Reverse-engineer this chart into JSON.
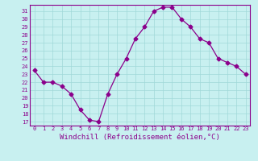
{
  "x": [
    0,
    1,
    2,
    3,
    4,
    5,
    6,
    7,
    8,
    9,
    10,
    11,
    12,
    13,
    14,
    15,
    16,
    17,
    18,
    19,
    20,
    21,
    22,
    23
  ],
  "y": [
    23.5,
    22.0,
    22.0,
    21.5,
    20.5,
    18.5,
    17.2,
    17.0,
    20.5,
    23.0,
    25.0,
    27.5,
    29.0,
    31.0,
    31.5,
    31.5,
    30.0,
    29.0,
    27.5,
    27.0,
    25.0,
    24.5,
    24.0,
    23.0
  ],
  "line_color": "#8b008b",
  "marker": "D",
  "markersize": 2.5,
  "linewidth": 0.9,
  "bg_color": "#c8f0f0",
  "grid_color": "#a0d8d8",
  "xlabel": "Windchill (Refroidissement éolien,°C)",
  "xlabel_fontsize": 6.5,
  "ytick_values": [
    17,
    18,
    19,
    20,
    21,
    22,
    23,
    24,
    25,
    26,
    27,
    28,
    29,
    30,
    31
  ],
  "xlim": [
    -0.5,
    23.5
  ],
  "ylim": [
    16.5,
    31.8
  ],
  "tick_color": "#8b008b",
  "axis_color": "#8b008b",
  "label_color": "#8b008b"
}
